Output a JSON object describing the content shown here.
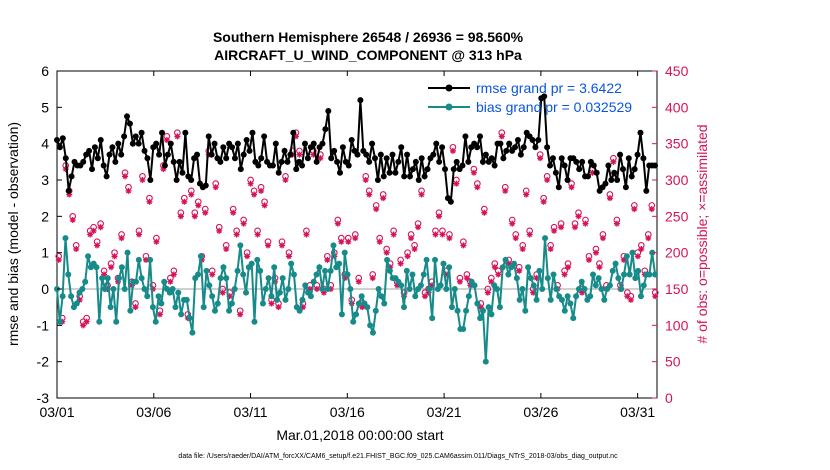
{
  "chart_data": {
    "type": "line",
    "title": "Southern Hemisphere 26548 / 26936 = 98.560%",
    "subtitle": "AIRCRAFT_U_WIND_COMPONENT @ 313 hPa",
    "xlabel": "Mar.01,2018 00:00:00 start",
    "ylabel": "rmse and bias (model - observation)",
    "y2label": "# of obs: o=possible; ×=assimilated",
    "footer": "data file: /Users/raeder/DAI/ATM_forcXX/CAM6_setup/f.e21.FHIST_BGC.f09_025.CAM6assim.011/Diags_NTrS_2018-03/obs_diag_output.nc",
    "x_ticks": [
      "03/01",
      "03/06",
      "03/11",
      "03/16",
      "03/21",
      "03/26",
      "03/31"
    ],
    "x_tick_days": [
      0,
      5,
      10,
      15,
      20,
      25,
      30
    ],
    "xlim": [
      0,
      31
    ],
    "ylim": [
      -3,
      6
    ],
    "y_ticks": [
      "-3",
      "-2",
      "-1",
      "0",
      "1",
      "2",
      "3",
      "4",
      "5",
      "6"
    ],
    "y2lim": [
      0,
      450
    ],
    "y2_ticks": [
      "0",
      "50",
      "100",
      "150",
      "200",
      "250",
      "300",
      "350",
      "400",
      "450"
    ],
    "colors": {
      "rmse": "#000000",
      "bias": "#178a8a",
      "obs": "#d6145a",
      "zero_line": "#b5b5b5",
      "legend_text": "#0a55e0"
    },
    "series": [
      {
        "name": "rmse grand pr = 3.6422",
        "values": [
          4.1,
          3.9,
          4.15,
          3.6,
          2.7,
          3.1,
          3.5,
          3.4,
          3.4,
          3.5,
          3.7,
          3.8,
          3.3,
          3.9,
          3.6,
          4.1,
          3.4,
          3.1,
          3.7,
          3.9,
          3.5,
          4.0,
          3.7,
          4.2,
          4.75,
          4.55,
          4.0,
          4.2,
          4.0,
          4.3,
          3.8,
          3.6,
          3.0,
          3.9,
          4.0,
          3.7,
          4.3,
          3.4,
          3.7,
          4.0,
          3.5,
          3.0,
          3.5,
          3.2,
          4.3,
          3.1,
          3.0,
          3.6,
          3.7,
          2.9,
          2.8,
          2.85,
          4.2,
          3.7,
          4.0,
          3.6,
          3.5,
          3.9,
          3.6,
          4.0,
          3.9,
          3.6,
          4.0,
          3.3,
          3.7,
          4.1,
          3.8,
          4.3,
          3.5,
          3.4,
          3.6,
          4.2,
          3.5,
          3.4,
          3.4,
          4.0,
          3.2,
          3.5,
          3.8,
          3.5,
          3.7,
          4.3,
          3.3,
          3.5,
          3.4,
          4.0,
          3.6,
          3.9,
          4.0,
          3.5,
          3.9,
          4.0,
          4.4,
          4.9,
          3.6,
          3.8,
          3.5,
          3.2,
          3.9,
          3.5,
          3.4,
          4.1,
          3.8,
          3.7,
          5.2,
          3.8,
          3.7,
          3.5,
          4.0,
          3.6,
          3.0,
          3.7,
          3.1,
          3.6,
          3.2,
          3.7,
          3.2,
          3.5,
          3.9,
          3.1,
          3.7,
          3.1,
          3.3,
          3.5,
          3.0,
          3.6,
          3.1,
          3.3,
          3.6,
          3.7,
          4.0,
          3.5,
          3.9,
          3.3,
          2.5,
          2.4,
          3.3,
          3.5,
          3.3,
          3.4,
          4.2,
          3.5,
          3.9,
          4.0,
          3.9,
          4.2,
          3.5,
          3.7,
          3.5,
          3.6,
          3.4,
          4.0,
          4.0,
          3.6,
          3.8,
          4.0,
          3.8,
          3.9,
          4.1,
          3.7,
          3.9,
          4.3,
          4.2,
          4.1,
          3.9,
          4.1,
          5.25,
          5.3,
          3.9,
          3.4,
          3.6,
          3.2,
          2.8,
          3.6,
          3.4,
          3.0,
          3.6,
          3.6,
          3.5,
          3.3,
          3.5,
          3.1,
          3.1,
          3.5,
          3.4,
          3.2,
          2.7,
          2.8,
          2.9,
          3.4,
          3.0,
          3.2,
          3.0,
          3.7,
          3.3,
          2.8,
          3.6,
          3.1,
          3.3,
          3.7,
          4.3,
          3.6,
          2.7,
          3.4,
          3.4,
          3.4
        ]
      },
      {
        "name": "bias grand pr = 0.032529",
        "values": [
          0.0,
          -0.9,
          -0.2,
          1.4,
          0.4,
          -0.2,
          -0.5,
          -0.4,
          -0.1,
          0.0,
          0.2,
          0.9,
          0.6,
          0.7,
          0.6,
          -0.9,
          0.3,
          0.0,
          0.3,
          -0.5,
          0.0,
          -0.9,
          0.3,
          0.6,
          0.0,
          1.0,
          -0.6,
          0.2,
          0.2,
          0.8,
          0.3,
          0.0,
          -0.2,
          0.8,
          -0.5,
          -0.9,
          -0.2,
          -0.4,
          0.2,
          0.0,
          -0.1,
          0.0,
          -0.5,
          -0.1,
          -0.7,
          -0.3,
          -0.3,
          -0.8,
          -1.2,
          0.3,
          0.4,
          0.9,
          -0.5,
          0.5,
          0.1,
          -0.2,
          -0.6,
          -0.4,
          0.3,
          0.6,
          0.3,
          -0.6,
          -0.4,
          0.0,
          0.5,
          1.2,
          0.4,
          -0.1,
          0.6,
          0.7,
          -0.9,
          0.8,
          0.5,
          -0.4,
          0.0,
          0.3,
          -0.2,
          0.6,
          -0.3,
          -0.1,
          0.3,
          -0.3,
          0.0,
          0.7,
          0.4,
          -0.5,
          -0.6,
          -0.3,
          0.1,
          -0.1,
          -0.2,
          0.2,
          0.4,
          0.6,
          0.0,
          0.5,
          0.0,
          0.5,
          1.2,
          0.6,
          0.7,
          -0.7,
          1.0,
          0.4,
          0.0,
          -0.9,
          -0.7,
          -0.4,
          -0.2,
          -0.4,
          -0.5,
          -1.0,
          -1.2,
          -0.6,
          0.0,
          -0.2,
          -0.4,
          0.8,
          0.5,
          0.3,
          0.3,
          0.2,
          0.1,
          -0.5,
          0.5,
          0.0,
          0.4,
          -0.2,
          0.0,
          0.1,
          0.4,
          0.8,
          0.0,
          -0.8,
          0.8,
          0.0,
          0.1,
          0.7,
          0.0,
          0.6,
          -0.5,
          0.0,
          -0.6,
          -1.1,
          -1.1,
          -0.6,
          -0.2,
          0.2,
          0.1,
          -0.4,
          -0.8,
          -0.6,
          -2.0,
          -0.5,
          -0.7,
          0.1,
          0.0,
          -0.5,
          0.6,
          0.8,
          0.4,
          0.6,
          0.7,
          0.3,
          -0.3,
          0.0,
          -0.6,
          0.6,
          0.3,
          0.1,
          -0.3,
          0.5,
          0.0,
          1.4,
          0.3,
          -0.3,
          0.4,
          0.0,
          -0.2,
          -0.3,
          -0.6,
          -0.2,
          -0.4,
          -0.8,
          -0.2,
          0.0,
          0.2,
          0.0,
          -0.3,
          -0.2,
          0.4,
          0.1,
          0.3,
          0.0,
          -0.3,
          0.0,
          0.1,
          0.5,
          0.7,
          0.3,
          0.0,
          0.4,
          0.9,
          0.4,
          1.0,
          0.3,
          0.5,
          -0.2,
          0.1,
          0.4,
          0.4,
          1.0,
          0.4
        ]
      },
      {
        "name": "obs possible",
        "marker": "circle",
        "values": [
          195,
          110,
          320,
          285,
          250,
          210,
          140,
          105,
          110,
          230,
          235,
          215,
          240,
          175,
          155,
          185,
          200,
          165,
          225,
          310,
          290,
          160,
          130,
          230,
          305,
          195,
          275,
          155,
          220,
          120,
          320,
          360,
          165,
          175,
          365,
          255,
          275,
          115,
          285,
          255,
          270,
          195,
          260,
          340,
          175,
          295,
          235,
          150,
          210,
          145,
          260,
          230,
          120,
          245,
          200,
          300,
          285,
          230,
          290,
          270,
          215,
          135,
          165,
          130,
          215,
          305,
          200,
          340,
          365,
          340,
          130,
          230,
          155,
          340,
          155,
          335,
          150,
          195,
          155,
          200,
          245,
          220,
          170,
          220,
          135,
          225,
          165,
          130,
          305,
          285,
          170,
          265,
          220,
          280,
          205,
          185,
          230,
          160,
          190,
          145,
          200,
          225,
          210,
          240,
          285,
          145,
          150,
          160,
          230,
          255,
          230,
          175,
          225,
          345,
          300,
          165,
          215,
          170,
          160,
          315,
          295,
          130,
          260,
          150,
          165,
          185,
          175,
          365,
          290,
          190,
          245,
          225,
          180,
          210,
          285,
          230,
          150,
          170,
          335,
          275,
          305,
          210,
          235,
          155,
          240,
          175,
          185,
          295,
          240,
          255,
          150,
          245,
          195,
          315,
          205,
          185,
          225,
          155,
          280,
          330,
          245,
          155,
          195,
          145,
          140,
          265,
          200,
          210,
          175,
          225,
          265,
          145
        ]
      },
      {
        "name": "obs assimilated",
        "marker": "asterisk",
        "values": [
          190,
          105,
          315,
          280,
          245,
          205,
          135,
          100,
          105,
          225,
          230,
          210,
          235,
          170,
          150,
          180,
          195,
          160,
          220,
          305,
          285,
          155,
          125,
          225,
          300,
          190,
          270,
          150,
          215,
          115,
          315,
          355,
          160,
          170,
          360,
          250,
          270,
          110,
          280,
          250,
          265,
          190,
          255,
          335,
          170,
          290,
          230,
          145,
          205,
          140,
          255,
          225,
          115,
          240,
          195,
          295,
          280,
          225,
          285,
          265,
          210,
          130,
          160,
          125,
          210,
          300,
          195,
          335,
          360,
          335,
          125,
          225,
          150,
          335,
          150,
          330,
          145,
          190,
          150,
          195,
          240,
          215,
          165,
          215,
          130,
          220,
          160,
          125,
          300,
          280,
          165,
          260,
          215,
          275,
          200,
          180,
          225,
          155,
          185,
          140,
          195,
          220,
          205,
          235,
          280,
          140,
          145,
          155,
          225,
          250,
          225,
          170,
          220,
          340,
          295,
          160,
          210,
          165,
          155,
          310,
          290,
          125,
          255,
          145,
          160,
          180,
          170,
          360,
          285,
          185,
          240,
          220,
          175,
          205,
          280,
          225,
          145,
          165,
          330,
          270,
          300,
          205,
          230,
          150,
          235,
          170,
          180,
          290,
          235,
          250,
          145,
          240,
          190,
          310,
          200,
          180,
          220,
          150,
          275,
          325,
          240,
          150,
          190,
          140,
          135,
          260,
          195,
          205,
          170,
          220,
          260,
          140
        ]
      }
    ]
  }
}
